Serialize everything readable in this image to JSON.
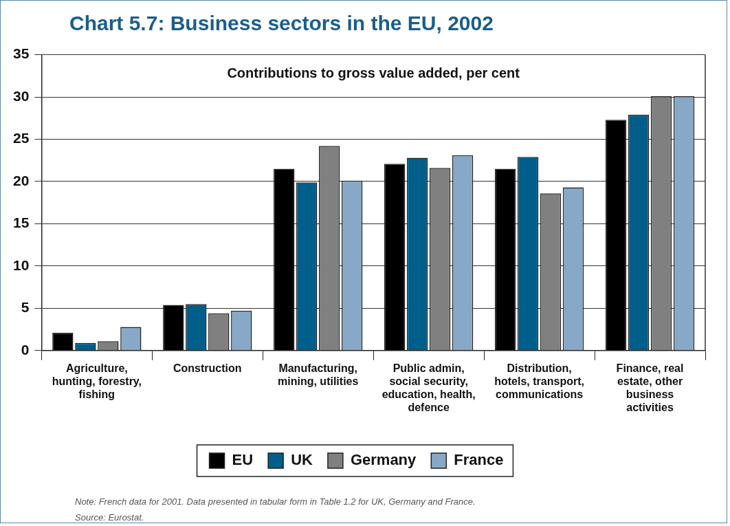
{
  "chart_data": {
    "type": "bar",
    "title": "Chart 5.7: Business sectors in the EU, 2002",
    "subtitle": "Contributions to gross value added, per cent",
    "categories": [
      "Agriculture, hunting, forestry, fishing",
      "Construction",
      "Manufacturing, mining, utilities",
      "Public admin, social security, education, health, defence",
      "Distribution, hotels, transport, communications",
      "Finance, real estate, other business activities"
    ],
    "series": [
      {
        "name": "EU",
        "color": "#000000",
        "values": [
          2.1,
          5.4,
          21.5,
          22.1,
          21.5,
          27.3
        ]
      },
      {
        "name": "UK",
        "color": "#005e8a",
        "values": [
          0.9,
          5.5,
          19.9,
          22.8,
          22.9,
          27.9
        ]
      },
      {
        "name": "Germany",
        "color": "#808080",
        "values": [
          1.1,
          4.4,
          24.2,
          21.6,
          18.6,
          30.1
        ]
      },
      {
        "name": "France",
        "color": "#87a8c6",
        "values": [
          2.8,
          4.7,
          20.1,
          23.1,
          19.3,
          30.1
        ]
      }
    ],
    "ylim": [
      0,
      35
    ],
    "yticks": [
      0,
      5,
      10,
      15,
      20,
      25,
      30,
      35
    ],
    "grid": "y",
    "legend": "bottom",
    "annotations": [
      "Note: French data for 2001. Data presented in tabular form in Table 1.2 for UK, Germany and France.",
      "Source: Eurostat."
    ]
  }
}
